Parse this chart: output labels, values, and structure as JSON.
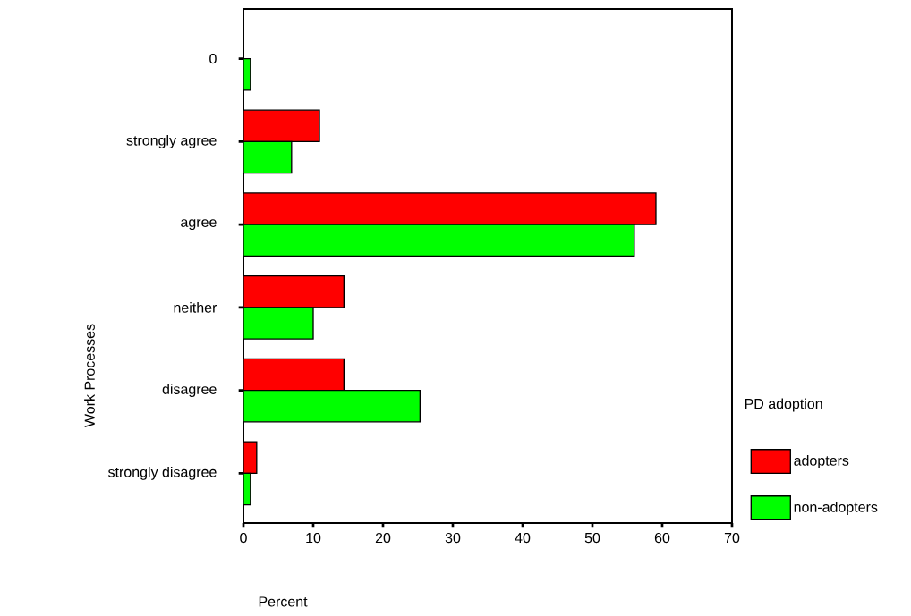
{
  "chart_data": {
    "type": "bar",
    "orientation": "horizontal",
    "xlabel": "Percent",
    "ylabel": "Work Processes",
    "legend_title": "PD adoption",
    "legend": "right",
    "categories": [
      "0",
      "strongly agree",
      "agree",
      "neither",
      "disagree",
      "strongly disagree"
    ],
    "series": [
      {
        "name": "adopters",
        "color": "#ff0000",
        "values": [
          null,
          10.9,
          59.1,
          14.4,
          14.4,
          1.9
        ]
      },
      {
        "name": "non-adopters",
        "color": "#00ff00",
        "values": [
          1.0,
          6.9,
          56.0,
          10.0,
          25.3,
          1.0
        ]
      }
    ],
    "xlim": [
      0,
      70
    ],
    "xticks": [
      0,
      10,
      20,
      30,
      40,
      50,
      60,
      70
    ],
    "grid": false
  }
}
